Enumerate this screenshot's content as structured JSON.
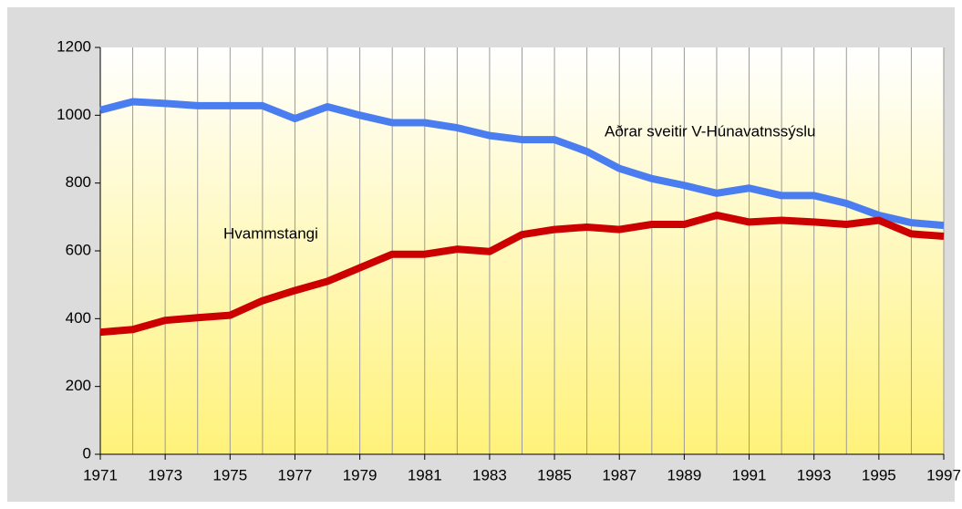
{
  "chart_data": {
    "type": "line",
    "x": [
      1971,
      1972,
      1973,
      1974,
      1975,
      1976,
      1977,
      1978,
      1979,
      1980,
      1981,
      1982,
      1983,
      1984,
      1985,
      1986,
      1987,
      1988,
      1989,
      1990,
      1991,
      1992,
      1993,
      1994,
      1995,
      1996,
      1997
    ],
    "series": [
      {
        "name": "Aðrar sveitir V-Húnavatnssýslu",
        "color": "#4a7ef0",
        "values": [
          1015,
          1040,
          1035,
          1028,
          1028,
          1028,
          990,
          1025,
          1000,
          978,
          978,
          963,
          940,
          928,
          928,
          893,
          843,
          813,
          793,
          770,
          785,
          763,
          763,
          740,
          705,
          683,
          675
        ]
      },
      {
        "name": "Hvammstangi",
        "color": "#cc0000",
        "values": [
          360,
          368,
          395,
          403,
          410,
          453,
          483,
          510,
          550,
          590,
          590,
          605,
          598,
          648,
          663,
          670,
          663,
          678,
          678,
          705,
          685,
          690,
          685,
          678,
          690,
          650,
          643
        ]
      }
    ],
    "xlim": [
      1971,
      1997
    ],
    "xticks": [
      1971,
      1973,
      1975,
      1977,
      1979,
      1981,
      1983,
      1985,
      1987,
      1989,
      1991,
      1993,
      1995,
      1997
    ],
    "ylim": [
      0,
      1200
    ],
    "yticks": [
      0,
      200,
      400,
      600,
      800,
      1000,
      1200
    ],
    "grid": true
  }
}
